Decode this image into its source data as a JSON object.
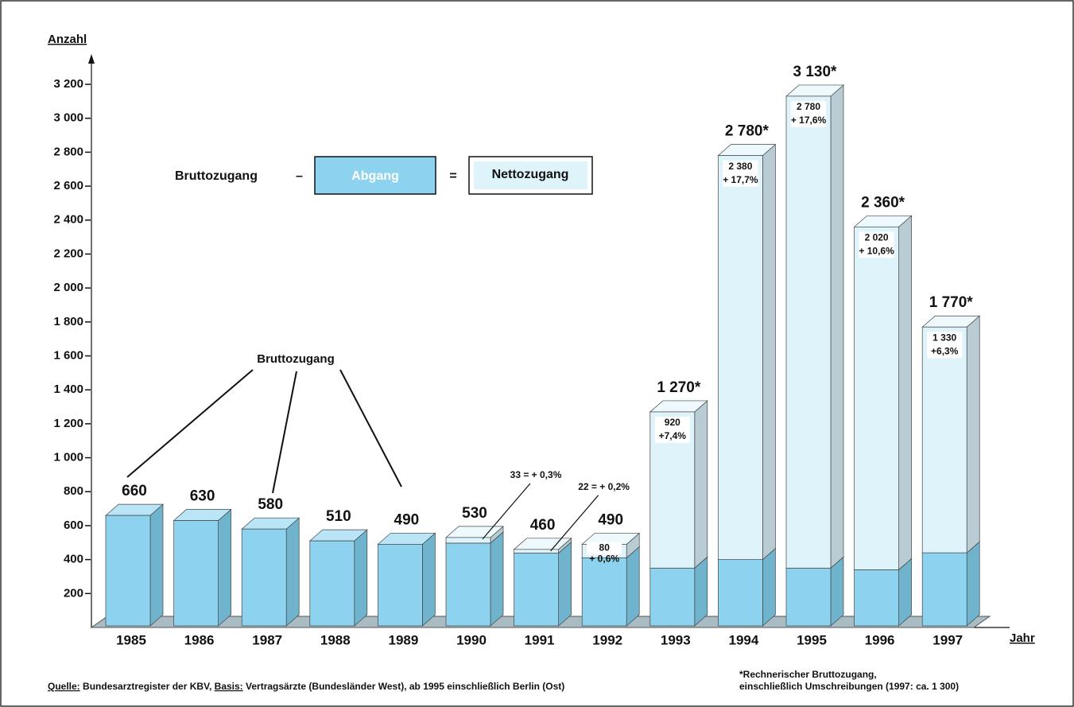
{
  "chart_data": {
    "type": "bar3d_stacked",
    "y_axis_label": "Anzahl",
    "x_axis_label": "Jahr",
    "categories": [
      "1985",
      "1986",
      "1987",
      "1988",
      "1989",
      "1990",
      "1991",
      "1992",
      "1993",
      "1994",
      "1995",
      "1996",
      "1997"
    ],
    "ylim": [
      0,
      3350
    ],
    "yticks": [
      {
        "value": 200,
        "label": "200"
      },
      {
        "value": 400,
        "label": "400"
      },
      {
        "value": 600,
        "label": "600"
      },
      {
        "value": 800,
        "label": "800"
      },
      {
        "value": 1000,
        "label": "1 000"
      },
      {
        "value": 1200,
        "label": "1 200"
      },
      {
        "value": 1400,
        "label": "1 400"
      },
      {
        "value": 1600,
        "label": "1 600"
      },
      {
        "value": 1800,
        "label": "1 800"
      },
      {
        "value": 2000,
        "label": "2 000"
      },
      {
        "value": 2200,
        "label": "2 200"
      },
      {
        "value": 2400,
        "label": "2 400"
      },
      {
        "value": 2600,
        "label": "2 600"
      },
      {
        "value": 2800,
        "label": "2 800"
      },
      {
        "value": 3000,
        "label": "3 000"
      },
      {
        "value": 3200,
        "label": "3 200"
      }
    ],
    "totals": {
      "name": "Bruttozugang",
      "color": "#8dd3ef",
      "values": [
        660,
        630,
        580,
        510,
        490,
        530,
        460,
        490,
        1270,
        2780,
        3130,
        2360,
        1770
      ],
      "value_labels": [
        "660",
        "630",
        "580",
        "510",
        "490",
        "530",
        "460",
        "490",
        "1 270*",
        "2 780*",
        "3 130*",
        "2 360*",
        "1 770*"
      ]
    },
    "series": [
      {
        "name": "Abgang",
        "color": "#8dd3ef",
        "values": [
          null,
          null,
          null,
          null,
          null,
          497,
          438,
          410,
          350,
          400,
          350,
          340,
          440
        ]
      },
      {
        "name": "Nettozugang",
        "color": "#dff3fb",
        "values": [
          null,
          null,
          null,
          null,
          null,
          33,
          22,
          80,
          920,
          2380,
          2780,
          2020,
          1330
        ],
        "value_labels": [
          null,
          null,
          null,
          null,
          null,
          "33 = + 0,3%",
          "22 = + 0,2%",
          "80",
          "920",
          "2 380",
          "2 780",
          "2 020",
          "1 330"
        ],
        "change_labels": [
          null,
          null,
          null,
          null,
          null,
          null,
          null,
          "+ 0,6%",
          "+7,4%",
          "+ 17,7%",
          "+ 17,6%",
          "+ 10,6%",
          "+6,3%"
        ]
      }
    ],
    "legend_formula": {
      "minus": "–",
      "equals": "="
    },
    "footnote": {
      "source_key": "Quelle:",
      "source_text": "Bundesarztregister der KBV,",
      "basis_key": "Basis:",
      "basis_text": "Vertragsärzte (Bundesländer West), ab 1995 einschließlich Berlin (Ost)",
      "note_lines": [
        "*Rechnerischer Bruttozugang,",
        "einschließlich Umschreibungen (1997: ca. 1 300)"
      ]
    }
  }
}
